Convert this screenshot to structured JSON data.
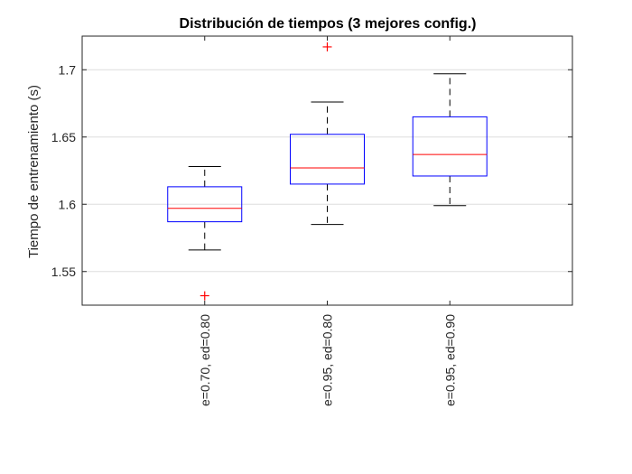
{
  "chart_data": {
    "type": "boxplot",
    "title": "Distribución de tiempos (3 mejores config.)",
    "xlabel": "",
    "ylabel": "Tiempo de entrenamiento (s)",
    "ylim": [
      1.525,
      1.725
    ],
    "yticks": [
      1.55,
      1.6,
      1.65,
      1.7
    ],
    "ytick_labels": [
      "1.55",
      "1.6",
      "1.65",
      "1.7"
    ],
    "grid": "horizontal",
    "categories": [
      "e=0.70, ed=0.80",
      "e=0.95, ed=0.80",
      "e=0.95, ed=0.90"
    ],
    "boxes": [
      {
        "whisker_low": 1.566,
        "q1": 1.587,
        "median": 1.597,
        "q3": 1.613,
        "whisker_high": 1.628,
        "outliers": [
          1.532
        ]
      },
      {
        "whisker_low": 1.585,
        "q1": 1.615,
        "median": 1.627,
        "q3": 1.652,
        "whisker_high": 1.676,
        "outliers": [
          1.717
        ]
      },
      {
        "whisker_low": 1.599,
        "q1": 1.621,
        "median": 1.637,
        "q3": 1.665,
        "whisker_high": 1.697,
        "outliers": []
      }
    ],
    "colors": {
      "box": "#0000ff",
      "median": "#ff0000",
      "whisker": "#000000",
      "outlier": "#ff0000",
      "grid": "#dedede"
    }
  }
}
